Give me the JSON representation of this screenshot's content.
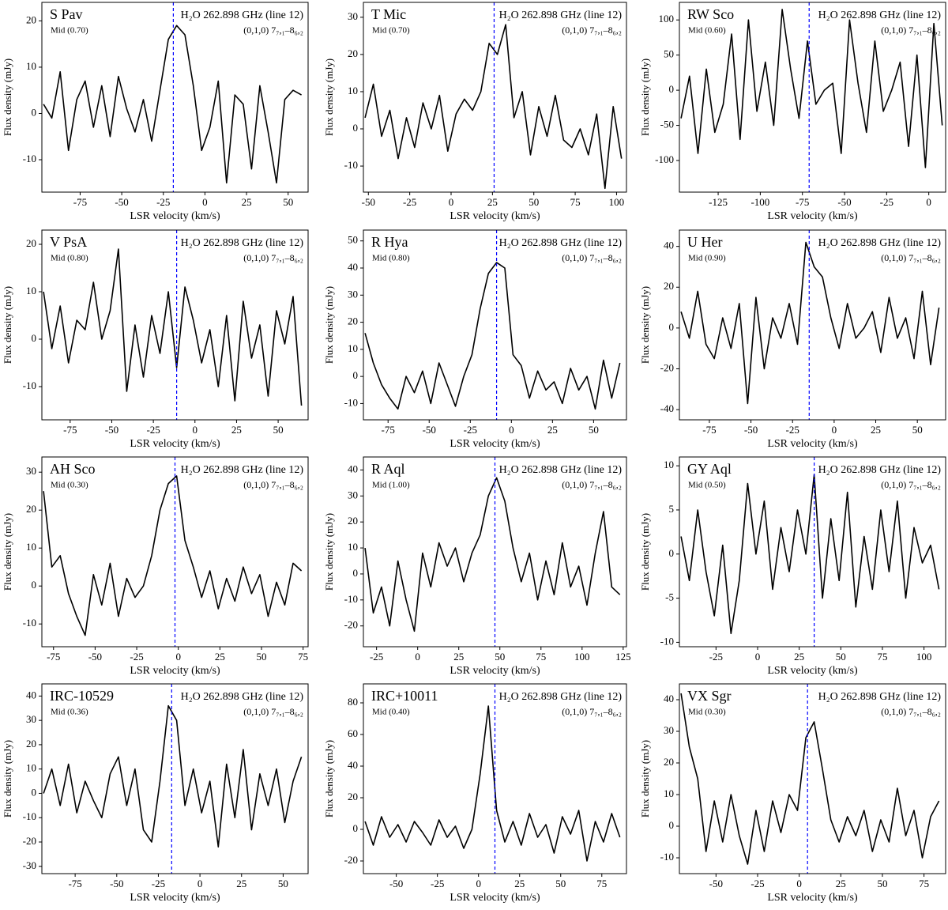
{
  "chart_data": [
    {
      "type": "line",
      "title": "S Pav",
      "subtitle": "Mid (0.70)",
      "annotation": "H₂O 262.898 GHz (line 12)",
      "transition": "(0,1,0) 7₇,₁–8₆,₂",
      "xlabel": "LSR velocity (km/s)",
      "ylabel": "Flux density (mJy)",
      "color": "#000000",
      "vline": -19,
      "vline_color": "#0000ff",
      "xlim": [
        -98,
        62
      ],
      "xticks": [
        -75,
        -50,
        -25,
        0,
        25,
        50
      ],
      "ylim": [
        -17,
        24
      ],
      "yticks": [
        -10,
        0,
        10,
        20
      ],
      "x": [
        -97,
        -92,
        -87,
        -82,
        -77,
        -72,
        -67,
        -62,
        -57,
        -52,
        -47,
        -42,
        -37,
        -32,
        -27,
        -22,
        -17,
        -12,
        -7,
        -2,
        3,
        8,
        13,
        18,
        23,
        28,
        33,
        38,
        43,
        48,
        53,
        58
      ],
      "values": [
        2,
        -1,
        9,
        -8,
        3,
        7,
        -3,
        6,
        -5,
        8,
        1,
        -4,
        3,
        -6,
        5,
        16,
        19,
        17,
        6,
        -8,
        -3,
        7,
        -15,
        4,
        2,
        -12,
        6,
        -4,
        -15,
        3,
        5,
        4
      ]
    },
    {
      "type": "line",
      "title": "T Mic",
      "subtitle": "Mid (0.70)",
      "annotation": "H₂O 262.898 GHz (line 12)",
      "transition": "(0,1,0) 7₇,₁–8₆,₂",
      "xlabel": "LSR velocity (km/s)",
      "ylabel": "Flux density (mJy)",
      "color": "#000000",
      "vline": 26,
      "vline_color": "#0000ff",
      "xlim": [
        -53,
        106
      ],
      "xticks": [
        -50,
        -25,
        0,
        25,
        50,
        75,
        100
      ],
      "ylim": [
        -17,
        34
      ],
      "yticks": [
        -10,
        0,
        10,
        20,
        30
      ],
      "x": [
        -52,
        -47,
        -42,
        -37,
        -32,
        -27,
        -22,
        -17,
        -12,
        -7,
        -2,
        3,
        8,
        13,
        18,
        23,
        28,
        33,
        38,
        43,
        48,
        53,
        58,
        63,
        68,
        73,
        78,
        83,
        88,
        93,
        98,
        103
      ],
      "values": [
        3,
        12,
        -2,
        5,
        -8,
        3,
        -5,
        7,
        0,
        9,
        -6,
        4,
        8,
        5,
        10,
        23,
        20,
        28,
        3,
        10,
        -7,
        6,
        -2,
        9,
        -3,
        -5,
        0,
        -7,
        4,
        -16,
        6,
        -8
      ]
    },
    {
      "type": "line",
      "title": "RW Sco",
      "subtitle": "Mid (0.60)",
      "annotation": "H₂O 262.898 GHz (line 12)",
      "transition": "(0,1,0) 7₇,₁–8₆,₂",
      "xlabel": "LSR velocity (km/s)",
      "ylabel": "Flux density (mJy)",
      "color": "#000000",
      "vline": -71,
      "vline_color": "#0000ff",
      "xlim": [
        -148,
        10
      ],
      "xticks": [
        -125,
        -100,
        -75,
        -50,
        -25,
        0
      ],
      "ylim": [
        -145,
        125
      ],
      "yticks": [
        -100,
        -50,
        0,
        50,
        100
      ],
      "x": [
        -147,
        -142,
        -137,
        -132,
        -127,
        -122,
        -117,
        -112,
        -107,
        -102,
        -97,
        -92,
        -87,
        -82,
        -77,
        -72,
        -67,
        -62,
        -57,
        -52,
        -47,
        -42,
        -37,
        -32,
        -27,
        -22,
        -17,
        -12,
        -7,
        -2,
        3,
        8
      ],
      "values": [
        -40,
        20,
        -90,
        30,
        -60,
        -20,
        80,
        -70,
        100,
        -30,
        40,
        -50,
        115,
        30,
        -40,
        70,
        -20,
        0,
        10,
        -90,
        100,
        10,
        -60,
        70,
        -30,
        0,
        40,
        -80,
        50,
        -110,
        95,
        -50
      ]
    },
    {
      "type": "line",
      "title": "V PsA",
      "subtitle": "Mid (0.80)",
      "annotation": "H₂O 262.898 GHz (line 12)",
      "transition": "(0,1,0) 7₇,₁–8₆,₂",
      "xlabel": "LSR velocity (km/s)",
      "ylabel": "Flux density (mJy)",
      "color": "#000000",
      "vline": -11,
      "vline_color": "#0000ff",
      "xlim": [
        -92,
        68
      ],
      "xticks": [
        -75,
        -50,
        -25,
        0,
        25,
        50
      ],
      "ylim": [
        -17,
        23
      ],
      "yticks": [
        -10,
        0,
        10,
        20
      ],
      "x": [
        -91,
        -86,
        -81,
        -76,
        -71,
        -66,
        -61,
        -56,
        -51,
        -46,
        -41,
        -36,
        -31,
        -26,
        -21,
        -16,
        -11,
        -6,
        -1,
        4,
        9,
        14,
        19,
        24,
        29,
        34,
        39,
        44,
        49,
        54,
        59,
        64
      ],
      "values": [
        10,
        -2,
        7,
        -5,
        4,
        2,
        12,
        0,
        6,
        19,
        -11,
        3,
        -8,
        5,
        -3,
        10,
        -6,
        11,
        4,
        -5,
        2,
        -10,
        5,
        -13,
        8,
        -4,
        3,
        -12,
        6,
        -1,
        9,
        -14
      ]
    },
    {
      "type": "line",
      "title": "R Hya",
      "subtitle": "Mid (0.80)",
      "annotation": "H₂O 262.898 GHz (line 12)",
      "transition": "(0,1,0) 7₇,₁–8₆,₂",
      "xlabel": "LSR velocity (km/s)",
      "ylabel": "Flux density (mJy)",
      "color": "#000000",
      "vline": -9,
      "vline_color": "#0000ff",
      "xlim": [
        -90,
        70
      ],
      "xticks": [
        -75,
        -50,
        -25,
        0,
        25,
        50
      ],
      "ylim": [
        -16,
        54
      ],
      "yticks": [
        -10,
        0,
        10,
        20,
        30,
        40,
        50
      ],
      "x": [
        -89,
        -84,
        -79,
        -74,
        -69,
        -64,
        -59,
        -54,
        -49,
        -44,
        -39,
        -34,
        -29,
        -24,
        -19,
        -14,
        -9,
        -4,
        1,
        6,
        11,
        16,
        21,
        26,
        31,
        36,
        41,
        46,
        51,
        56,
        61,
        66
      ],
      "values": [
        16,
        5,
        -3,
        -8,
        -12,
        0,
        -6,
        2,
        -10,
        5,
        -3,
        -11,
        0,
        8,
        25,
        38,
        42,
        40,
        8,
        4,
        -8,
        2,
        -5,
        -2,
        -10,
        3,
        -5,
        0,
        -12,
        6,
        -8,
        5
      ]
    },
    {
      "type": "line",
      "title": "U Her",
      "subtitle": "Mid (0.90)",
      "annotation": "H₂O 262.898 GHz (line 12)",
      "transition": "(0,1,0) 7₇,₁–8₆,₂",
      "xlabel": "LSR velocity (km/s)",
      "ylabel": "Flux density (mJy)",
      "color": "#000000",
      "vline": -15,
      "vline_color": "#0000ff",
      "xlim": [
        -93,
        67
      ],
      "xticks": [
        -75,
        -50,
        -25,
        0,
        25,
        50
      ],
      "ylim": [
        -45,
        48
      ],
      "yticks": [
        -40,
        -20,
        0,
        20,
        40
      ],
      "x": [
        -92,
        -87,
        -82,
        -77,
        -72,
        -67,
        -62,
        -57,
        -52,
        -47,
        -42,
        -37,
        -32,
        -27,
        -22,
        -17,
        -12,
        -7,
        -2,
        3,
        8,
        13,
        18,
        23,
        28,
        33,
        38,
        43,
        48,
        53,
        58,
        63
      ],
      "values": [
        8,
        -5,
        18,
        -8,
        -15,
        5,
        -10,
        12,
        -37,
        15,
        -20,
        5,
        -5,
        12,
        -8,
        42,
        30,
        25,
        5,
        -10,
        12,
        -5,
        0,
        8,
        -12,
        15,
        -5,
        5,
        -15,
        18,
        -18,
        10
      ]
    },
    {
      "type": "line",
      "title": "AH Sco",
      "subtitle": "Mid (0.30)",
      "annotation": "H₂O 262.898 GHz (line 12)",
      "transition": "(0,1,0) 7₇,₁–8₆,₂",
      "xlabel": "LSR velocity (km/s)",
      "ylabel": "Flux density (mJy)",
      "color": "#000000",
      "vline": -2,
      "vline_color": "#0000ff",
      "xlim": [
        -82,
        78
      ],
      "xticks": [
        -75,
        -50,
        -25,
        0,
        25,
        50,
        75
      ],
      "ylim": [
        -16,
        34
      ],
      "yticks": [
        -10,
        0,
        10,
        20,
        30
      ],
      "x": [
        -81,
        -76,
        -71,
        -66,
        -61,
        -56,
        -51,
        -46,
        -41,
        -36,
        -31,
        -26,
        -21,
        -16,
        -11,
        -6,
        -1,
        4,
        9,
        14,
        19,
        24,
        29,
        34,
        39,
        44,
        49,
        54,
        59,
        64,
        69,
        74
      ],
      "values": [
        25,
        5,
        8,
        -2,
        -8,
        -13,
        3,
        -5,
        6,
        -8,
        2,
        -3,
        0,
        8,
        20,
        27,
        29,
        12,
        5,
        -3,
        4,
        -6,
        2,
        -4,
        5,
        -2,
        3,
        -8,
        1,
        -5,
        6,
        4
      ]
    },
    {
      "type": "line",
      "title": "R Aql",
      "subtitle": "Mid (1.00)",
      "annotation": "H₂O 262.898 GHz (line 12)",
      "transition": "(0,1,0) 7₇,₁–8₆,₂",
      "xlabel": "LSR velocity (km/s)",
      "ylabel": "Flux density (mJy)",
      "color": "#000000",
      "vline": 47,
      "vline_color": "#0000ff",
      "xlim": [
        -33,
        127
      ],
      "xticks": [
        -25,
        0,
        25,
        50,
        75,
        100,
        125
      ],
      "ylim": [
        -28,
        45
      ],
      "yticks": [
        -20,
        -10,
        0,
        10,
        20,
        30,
        40
      ],
      "x": [
        -32,
        -27,
        -22,
        -17,
        -12,
        -7,
        -2,
        3,
        8,
        13,
        18,
        23,
        28,
        33,
        38,
        43,
        48,
        53,
        58,
        63,
        68,
        73,
        78,
        83,
        88,
        93,
        98,
        103,
        108,
        113,
        118,
        123
      ],
      "values": [
        10,
        -15,
        -5,
        -20,
        5,
        -10,
        -22,
        8,
        -5,
        12,
        3,
        10,
        -3,
        8,
        15,
        30,
        37,
        28,
        10,
        -3,
        8,
        -10,
        5,
        -8,
        12,
        -5,
        3,
        -12,
        8,
        24,
        -5,
        -8
      ]
    },
    {
      "type": "line",
      "title": "GY Aql",
      "subtitle": "Mid (0.50)",
      "annotation": "H₂O 262.898 GHz (line 12)",
      "transition": "(0,1,0) 7₇,₁–8₆,₂",
      "xlabel": "LSR velocity (km/s)",
      "ylabel": "Flux density (mJy)",
      "color": "#000000",
      "vline": 34,
      "vline_color": "#0000ff",
      "xlim": [
        -47,
        113
      ],
      "xticks": [
        -25,
        0,
        25,
        50,
        75,
        100
      ],
      "ylim": [
        -10.5,
        11
      ],
      "yticks": [
        -10,
        -5,
        0,
        5,
        10
      ],
      "x": [
        -46,
        -41,
        -36,
        -31,
        -26,
        -21,
        -16,
        -11,
        -6,
        -1,
        4,
        9,
        14,
        19,
        24,
        29,
        34,
        39,
        44,
        49,
        54,
        59,
        64,
        69,
        74,
        79,
        84,
        89,
        94,
        99,
        104,
        109
      ],
      "values": [
        2,
        -3,
        5,
        -2,
        -7,
        1,
        -9,
        -3,
        8,
        0,
        6,
        -4,
        3,
        -2,
        5,
        0,
        9,
        -5,
        4,
        -3,
        7,
        -6,
        2,
        -4,
        5,
        -2,
        6,
        -5,
        3,
        -1,
        1,
        -4
      ]
    },
    {
      "type": "line",
      "title": "IRC-10529",
      "subtitle": "Mid (0.36)",
      "annotation": "H₂O 262.898 GHz (line 12)",
      "transition": "(0,1,0) 7₇,₁–8₆,₂",
      "xlabel": "LSR velocity (km/s)",
      "ylabel": "Flux density (mJy)",
      "color": "#000000",
      "vline": -17,
      "vline_color": "#0000ff",
      "xlim": [
        -95,
        65
      ],
      "xticks": [
        -75,
        -50,
        -25,
        0,
        25,
        50
      ],
      "ylim": [
        -33,
        45
      ],
      "yticks": [
        -30,
        -20,
        -10,
        0,
        10,
        20,
        30,
        40
      ],
      "x": [
        -94,
        -89,
        -84,
        -79,
        -74,
        -69,
        -64,
        -59,
        -54,
        -49,
        -44,
        -39,
        -34,
        -29,
        -24,
        -19,
        -14,
        -9,
        -4,
        1,
        6,
        11,
        16,
        21,
        26,
        31,
        36,
        41,
        46,
        51,
        56,
        61
      ],
      "values": [
        0,
        10,
        -5,
        12,
        -8,
        5,
        -3,
        -10,
        8,
        15,
        -5,
        10,
        -15,
        -20,
        5,
        36,
        30,
        -5,
        10,
        -8,
        5,
        -22,
        12,
        -10,
        18,
        -15,
        8,
        -5,
        10,
        -12,
        5,
        15
      ]
    },
    {
      "type": "line",
      "title": "IRC+10011",
      "subtitle": "Mid (0.40)",
      "annotation": "H₂O 262.898 GHz (line 12)",
      "transition": "(0,1,0) 7₇,₁–8₆,₂",
      "xlabel": "LSR velocity (km/s)",
      "ylabel": "Flux density (mJy)",
      "color": "#000000",
      "vline": 10,
      "vline_color": "#0000ff",
      "xlim": [
        -70,
        90
      ],
      "xticks": [
        -50,
        -25,
        0,
        25,
        50,
        75
      ],
      "ylim": [
        -28,
        92
      ],
      "yticks": [
        -20,
        0,
        20,
        40,
        60,
        80
      ],
      "x": [
        -69,
        -64,
        -59,
        -54,
        -49,
        -44,
        -39,
        -34,
        -29,
        -24,
        -19,
        -14,
        -9,
        -4,
        1,
        6,
        11,
        16,
        21,
        26,
        31,
        36,
        41,
        46,
        51,
        56,
        61,
        66,
        71,
        76,
        81,
        86
      ],
      "values": [
        5,
        -10,
        8,
        -5,
        3,
        -8,
        5,
        -2,
        -10,
        6,
        -5,
        2,
        -12,
        0,
        35,
        78,
        12,
        -8,
        5,
        -10,
        10,
        -5,
        3,
        -15,
        8,
        -3,
        12,
        -20,
        5,
        -8,
        10,
        -5
      ]
    },
    {
      "type": "line",
      "title": "VX Sgr",
      "subtitle": "Mid (0.30)",
      "annotation": "H₂O 262.898 GHz (line 12)",
      "transition": "(0,1,0) 7₇,₁–8₆,₂",
      "xlabel": "LSR velocity (km/s)",
      "ylabel": "Flux density (mJy)",
      "color": "#000000",
      "vline": 5,
      "vline_color": "#0000ff",
      "xlim": [
        -72,
        88
      ],
      "xticks": [
        -50,
        -25,
        0,
        25,
        50,
        75
      ],
      "ylim": [
        -15,
        45
      ],
      "yticks": [
        -10,
        0,
        10,
        20,
        30,
        40
      ],
      "x": [
        -71,
        -66,
        -61,
        -56,
        -51,
        -46,
        -41,
        -36,
        -31,
        -26,
        -21,
        -16,
        -11,
        -6,
        -1,
        4,
        9,
        14,
        19,
        24,
        29,
        34,
        39,
        44,
        49,
        54,
        59,
        64,
        69,
        74,
        79,
        84
      ],
      "values": [
        42,
        25,
        15,
        -8,
        8,
        -5,
        10,
        -3,
        -12,
        5,
        -8,
        8,
        -2,
        10,
        5,
        28,
        33,
        18,
        2,
        -5,
        3,
        -3,
        5,
        -8,
        2,
        -5,
        12,
        -3,
        5,
        -10,
        3,
        8
      ]
    }
  ]
}
